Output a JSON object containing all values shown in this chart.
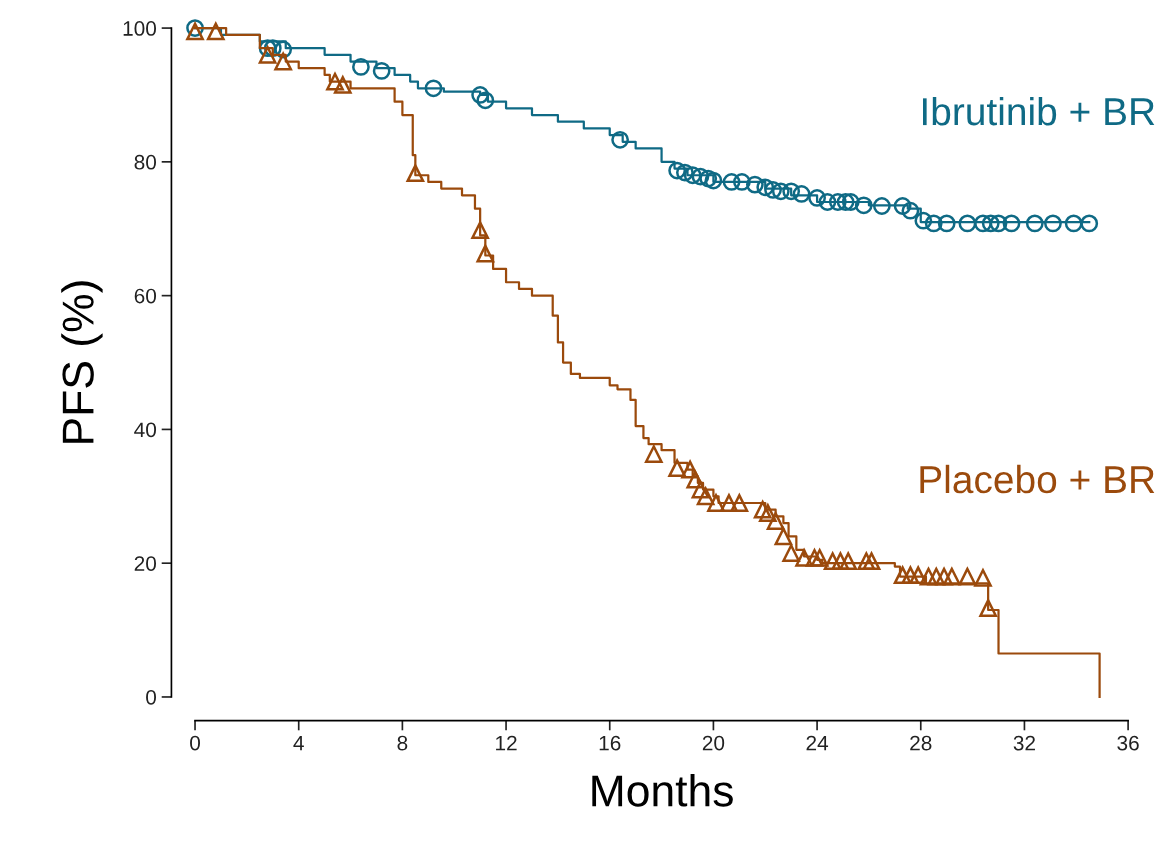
{
  "chart_data": {
    "type": "step",
    "xlabel": "Months",
    "ylabel": "PFS (%)",
    "xlim": [
      0,
      36
    ],
    "xticks": [
      0,
      4,
      8,
      12,
      16,
      20,
      24,
      28,
      32,
      36
    ],
    "ylim": [
      0,
      100
    ],
    "yticks": [
      0,
      20,
      40,
      60,
      80,
      100
    ],
    "grid": false,
    "legend": false,
    "series": [
      {
        "name": "Ibrutinib + BR",
        "color": "#0f6a85",
        "marker": "none",
        "x": [
          0,
          1,
          2.5,
          3.5,
          5,
          6,
          7,
          7.7,
          8.3,
          8.6,
          9.6,
          11,
          11.3,
          12,
          13,
          14,
          15,
          16,
          16.5,
          17,
          18,
          18.5,
          19,
          20,
          22,
          23,
          24,
          26,
          27.5,
          28,
          34.5
        ],
        "values": [
          100,
          99,
          98,
          97,
          96,
          95,
          94,
          93,
          92,
          91,
          90.5,
          90,
          89,
          88,
          87,
          86,
          85,
          84,
          83,
          82,
          80,
          79,
          78,
          77,
          76,
          75,
          74,
          73.5,
          73,
          71,
          71
        ]
      },
      {
        "type": "scatter",
        "color": "#0f6a85",
        "marker": "circle",
        "x": [
          0,
          2.8,
          3,
          3.4,
          6.4,
          7.2,
          9.2,
          11,
          11.2,
          16.4,
          18.6,
          18.9,
          19.2,
          19.5,
          19.8,
          20,
          20.7,
          21.1,
          21.6,
          22,
          22.3,
          22.6,
          23,
          23.4,
          24,
          24.4,
          24.8,
          25.1,
          25.3,
          25.8,
          26.5,
          27.3,
          27.6,
          28.1,
          28.5,
          29,
          29.8,
          30.4,
          30.7,
          31,
          31.5,
          32.4,
          33.1,
          33.9,
          34.5
        ],
        "values": [
          100,
          97,
          97,
          96.8,
          94.2,
          93.6,
          91,
          90,
          89.2,
          83.3,
          78.7,
          78.4,
          78,
          77.8,
          77.5,
          77.2,
          77,
          77,
          76.6,
          76.2,
          75.8,
          75.6,
          75.6,
          75.2,
          74.6,
          74,
          74,
          74,
          74,
          73.5,
          73.4,
          73.4,
          72.7,
          71.2,
          70.8,
          70.8,
          70.8,
          70.8,
          70.8,
          70.8,
          70.8,
          70.8,
          70.8,
          70.8,
          70.8
        ]
      },
      {
        "name": "Placebo + BR",
        "color": "#9b4a0c",
        "marker": "none",
        "x": [
          0,
          1.2,
          2.5,
          3,
          3.5,
          4,
          5,
          5.2,
          6,
          7.7,
          8,
          8.4,
          8.5,
          9,
          9.5,
          10.3,
          10.8,
          11,
          11.2,
          11.5,
          12,
          12.5,
          13,
          13.8,
          14,
          14.2,
          14.5,
          14.85,
          16,
          16.3,
          16.8,
          17,
          17.3,
          17.5,
          18,
          18.5,
          19,
          19.2,
          19.4,
          19.6,
          20,
          20.2,
          21.6,
          22,
          22.4,
          22.7,
          22.9,
          23.2,
          23.5,
          24,
          24.2,
          27,
          27.2,
          28.2,
          30.5,
          30.6,
          31,
          34.9,
          34.9
        ],
        "values": [
          100,
          99,
          97,
          96,
          95,
          94,
          93,
          92,
          91,
          89,
          87,
          81,
          78,
          77,
          76,
          75,
          73,
          69,
          66,
          64,
          62,
          61,
          60,
          57,
          53,
          50,
          48.3,
          47.7,
          46.6,
          46,
          44.4,
          40.5,
          38.7,
          37.8,
          36.9,
          35,
          34,
          33,
          32,
          31,
          30,
          29,
          29,
          28,
          27,
          26,
          24,
          22,
          21,
          20.5,
          20,
          19.5,
          18,
          17,
          17,
          13,
          6.5,
          6.5,
          0
        ]
      },
      {
        "type": "scatter",
        "color": "#9b4a0c",
        "marker": "triangle",
        "x": [
          0,
          0.8,
          2.8,
          3.4,
          5.4,
          5.7,
          8.5,
          11,
          11.2,
          17.7,
          18.6,
          19.1,
          19.3,
          19.5,
          19.7,
          20.1,
          20.6,
          21,
          21.9,
          22.1,
          22.4,
          22.7,
          23,
          23.5,
          23.9,
          24.1,
          24.6,
          24.9,
          25.2,
          25.9,
          26.1,
          27.3,
          27.6,
          27.9,
          28.3,
          28.6,
          28.9,
          29.2,
          29.8,
          30.4,
          30.6
        ],
        "values": [
          99.5,
          99.5,
          96,
          95,
          92,
          91.5,
          78.3,
          69.8,
          66.3,
          36.3,
          34.2,
          34,
          32.5,
          31,
          30,
          29,
          29,
          29,
          28,
          27.5,
          26.3,
          24,
          21.5,
          20.8,
          20.8,
          20.8,
          20.3,
          20.3,
          20.3,
          20.3,
          20.3,
          18.2,
          18.2,
          18.2,
          18,
          18,
          18,
          18,
          18,
          17.8,
          13.3
        ]
      }
    ]
  }
}
